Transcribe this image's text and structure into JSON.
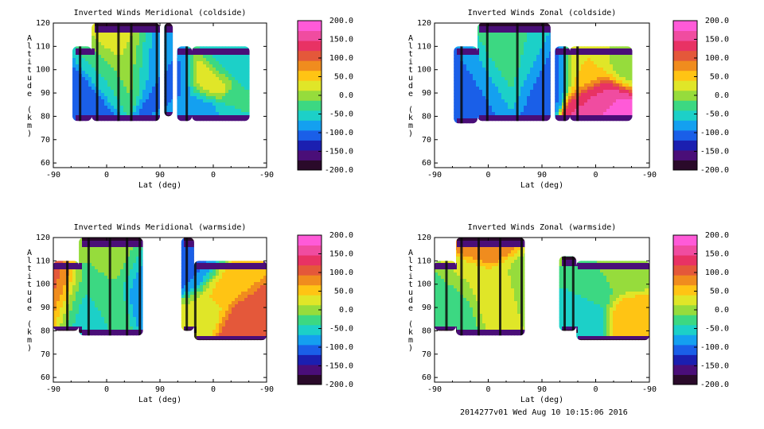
{
  "footer_text": "2014277v01 Wed Aug 10 10:15:06 2016",
  "colorbar": {
    "ticks": [
      "200.0",
      "150.0",
      "100.0",
      "50.0",
      "0.0",
      "-50.0",
      "-100.0",
      "-150.0",
      "-200.0"
    ],
    "colors": [
      "#2a0a2a",
      "#4a0e78",
      "#1b1fb0",
      "#1a5fe8",
      "#14a0f0",
      "#1cd0c8",
      "#3cd882",
      "#96dc3c",
      "#e0e628",
      "#ffc414",
      "#f08c1e",
      "#e4583a",
      "#e83264",
      "#f04ca0",
      "#ff5ad8"
    ]
  },
  "chart_data": [
    {
      "type": "heatmap",
      "title": "Inverted Winds Meridional (coldside)",
      "xlabel": "Lat (deg)",
      "ylabel": "Altitude (km)",
      "x_tick_labels": [
        "-90",
        "0",
        "90",
        "0",
        "-90"
      ],
      "y_tick_labels": [
        "60",
        "70",
        "80",
        "90",
        "100",
        "110",
        "120"
      ],
      "ylim": [
        58,
        120
      ],
      "zlim": [
        -200,
        200
      ],
      "blobs": [
        {
          "x": 0.1,
          "y": 92,
          "v": -120
        },
        {
          "x": 0.22,
          "y": 100,
          "v": -40
        },
        {
          "x": 0.3,
          "y": 108,
          "v": 20
        },
        {
          "x": 0.35,
          "y": 104,
          "v": 10
        },
        {
          "x": 0.44,
          "y": 104,
          "v": -80
        },
        {
          "x": 0.56,
          "y": 96,
          "v": -100
        },
        {
          "x": 0.72,
          "y": 97,
          "v": 40
        },
        {
          "x": 0.66,
          "y": 84,
          "v": -80
        },
        {
          "x": 0.88,
          "y": 84,
          "v": -40
        },
        {
          "x": 0.8,
          "y": 104,
          "v": -60
        }
      ],
      "coverage": [
        {
          "x0": 0.09,
          "x1": 0.18,
          "y0": 78,
          "y1": 110
        },
        {
          "x0": 0.18,
          "x1": 0.5,
          "y0": 78,
          "y1": 120
        },
        {
          "x0": 0.52,
          "x1": 0.56,
          "y0": 80,
          "y1": 120
        },
        {
          "x0": 0.58,
          "x1": 0.65,
          "y0": 78,
          "y1": 110
        },
        {
          "x0": 0.65,
          "x1": 0.92,
          "y0": 78,
          "y1": 110
        }
      ],
      "stripes": [
        0.12,
        0.2,
        0.3,
        0.36,
        0.48,
        0.52,
        0.56,
        0.62
      ]
    },
    {
      "type": "heatmap",
      "title": "Inverted Winds Zonal (coldside)",
      "xlabel": "Lat (deg)",
      "ylabel": "Altitude (km)",
      "x_tick_labels": [
        "-90",
        "0",
        "90",
        "0",
        "-90"
      ],
      "y_tick_labels": [
        "60",
        "70",
        "80",
        "90",
        "100",
        "110",
        "120"
      ],
      "ylim": [
        58,
        120
      ],
      "zlim": [
        -200,
        200
      ],
      "blobs": [
        {
          "x": 0.1,
          "y": 94,
          "v": -120
        },
        {
          "x": 0.22,
          "y": 100,
          "v": -80
        },
        {
          "x": 0.3,
          "y": 104,
          "v": -20
        },
        {
          "x": 0.4,
          "y": 104,
          "v": -40
        },
        {
          "x": 0.5,
          "y": 100,
          "v": -100
        },
        {
          "x": 0.72,
          "y": 100,
          "v": 40
        },
        {
          "x": 0.82,
          "y": 87,
          "v": 190
        },
        {
          "x": 0.78,
          "y": 90,
          "v": 140
        },
        {
          "x": 0.88,
          "y": 100,
          "v": 0
        }
      ],
      "coverage": [
        {
          "x0": 0.09,
          "x1": 0.2,
          "y0": 77,
          "y1": 110
        },
        {
          "x0": 0.2,
          "x1": 0.54,
          "y0": 78,
          "y1": 120
        },
        {
          "x0": 0.56,
          "x1": 0.63,
          "y0": 78,
          "y1": 110
        },
        {
          "x0": 0.63,
          "x1": 0.92,
          "y0": 78,
          "y1": 110
        }
      ],
      "stripes": [
        0.12,
        0.24,
        0.38,
        0.5,
        0.54,
        0.6,
        0.66
      ]
    },
    {
      "type": "heatmap",
      "title": "Inverted Winds Meridional (warmside)",
      "xlabel": "Lat (deg)",
      "ylabel": "Altitude (km)",
      "x_tick_labels": [
        "-90",
        "0",
        "90",
        "0",
        "-90"
      ],
      "y_tick_labels": [
        "60",
        "70",
        "80",
        "90",
        "100",
        "110",
        "120"
      ],
      "ylim": [
        58,
        120
      ],
      "zlim": [
        -200,
        200
      ],
      "blobs": [
        {
          "x": 0.03,
          "y": 97,
          "v": 110
        },
        {
          "x": 0.1,
          "y": 95,
          "v": -60
        },
        {
          "x": 0.22,
          "y": 100,
          "v": -20
        },
        {
          "x": 0.3,
          "y": 108,
          "v": 0
        },
        {
          "x": 0.4,
          "y": 104,
          "v": -80
        },
        {
          "x": 0.76,
          "y": 98,
          "v": 60
        },
        {
          "x": 0.88,
          "y": 84,
          "v": 110
        },
        {
          "x": 0.7,
          "y": 90,
          "v": 20
        },
        {
          "x": 0.66,
          "y": 104,
          "v": -100
        }
      ],
      "coverage": [
        {
          "x0": 0.0,
          "x1": 0.12,
          "y0": 80,
          "y1": 110
        },
        {
          "x0": 0.12,
          "x1": 0.42,
          "y0": 78,
          "y1": 120
        },
        {
          "x0": 0.6,
          "x1": 0.66,
          "y0": 80,
          "y1": 120
        },
        {
          "x0": 0.66,
          "x1": 1.0,
          "y0": 76,
          "y1": 110
        }
      ],
      "stripes": [
        0.06,
        0.16,
        0.26,
        0.34,
        0.4,
        0.62,
        0.66
      ]
    },
    {
      "type": "heatmap",
      "title": "Inverted Winds Zonal (warmside)",
      "xlabel": "Lat (deg)",
      "ylabel": "Altitude (km)",
      "x_tick_labels": [
        "-90",
        "0",
        "90",
        "0",
        "-90"
      ],
      "y_tick_labels": [
        "60",
        "70",
        "80",
        "90",
        "100",
        "110",
        "120"
      ],
      "ylim": [
        58,
        120
      ],
      "zlim": [
        -200,
        200
      ],
      "blobs": [
        {
          "x": 0.22,
          "y": 116,
          "v": 90
        },
        {
          "x": 0.16,
          "y": 104,
          "v": 20
        },
        {
          "x": 0.26,
          "y": 100,
          "v": 30
        },
        {
          "x": 0.36,
          "y": 102,
          "v": 10
        },
        {
          "x": 0.08,
          "y": 96,
          "v": -20
        },
        {
          "x": 0.76,
          "y": 98,
          "v": -20
        },
        {
          "x": 0.9,
          "y": 88,
          "v": 60
        },
        {
          "x": 0.7,
          "y": 88,
          "v": -60
        },
        {
          "x": 0.88,
          "y": 104,
          "v": 0
        }
      ],
      "coverage": [
        {
          "x0": 0.0,
          "x1": 0.1,
          "y0": 80,
          "y1": 110
        },
        {
          "x0": 0.1,
          "x1": 0.42,
          "y0": 78,
          "y1": 120
        },
        {
          "x0": 0.58,
          "x1": 0.66,
          "y0": 80,
          "y1": 112
        },
        {
          "x0": 0.66,
          "x1": 1.0,
          "y0": 76,
          "y1": 110
        }
      ],
      "stripes": [
        0.05,
        0.12,
        0.2,
        0.3,
        0.4,
        0.6,
        0.64
      ]
    }
  ]
}
